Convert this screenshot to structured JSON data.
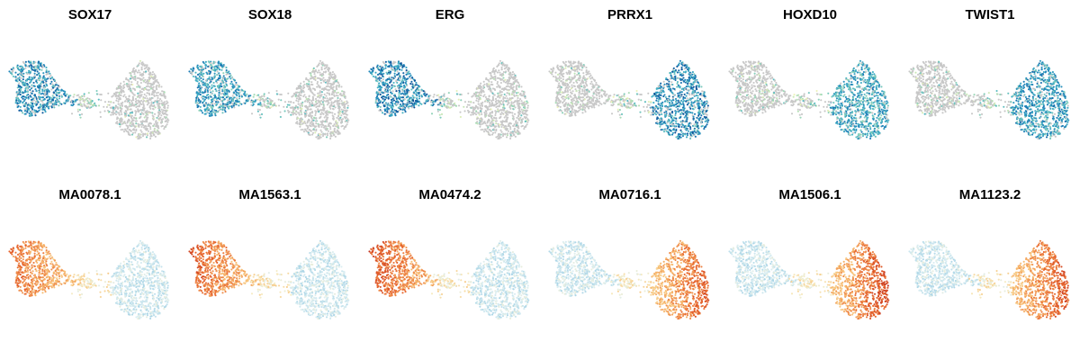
{
  "chart_data": [
    {
      "type": "scatter",
      "title": "SOX17",
      "feature": "gene expression",
      "enriched_region": "left",
      "palette": "gene",
      "intensity": 0.95
    },
    {
      "type": "scatter",
      "title": "SOX18",
      "feature": "gene expression",
      "enriched_region": "left",
      "palette": "gene",
      "intensity": 0.85
    },
    {
      "type": "scatter",
      "title": "ERG",
      "feature": "gene expression",
      "enriched_region": "left",
      "palette": "gene",
      "intensity": 1.0
    },
    {
      "type": "scatter",
      "title": "PRRX1",
      "feature": "gene expression",
      "enriched_region": "right",
      "palette": "gene",
      "intensity": 1.0
    },
    {
      "type": "scatter",
      "title": "HOXD10",
      "feature": "gene expression",
      "enriched_region": "right",
      "palette": "gene",
      "intensity": 0.8
    },
    {
      "type": "scatter",
      "title": "TWIST1",
      "feature": "gene expression",
      "enriched_region": "right",
      "palette": "gene",
      "intensity": 0.85
    },
    {
      "type": "scatter",
      "title": "MA0078.1",
      "feature": "motif activity",
      "enriched_region": "left",
      "palette": "motif",
      "intensity": 0.65
    },
    {
      "type": "scatter",
      "title": "MA1563.1",
      "feature": "motif activity",
      "enriched_region": "left",
      "palette": "motif",
      "intensity": 0.8
    },
    {
      "type": "scatter",
      "title": "MA0474.2",
      "feature": "motif activity",
      "enriched_region": "left",
      "palette": "motif",
      "intensity": 0.9
    },
    {
      "type": "scatter",
      "title": "MA0716.1",
      "feature": "motif activity",
      "enriched_region": "right",
      "palette": "motif",
      "intensity": 0.8
    },
    {
      "type": "scatter",
      "title": "MA1506.1",
      "feature": "motif activity",
      "enriched_region": "right",
      "palette": "motif",
      "intensity": 0.95
    },
    {
      "type": "scatter",
      "title": "MA1123.2",
      "feature": "motif activity",
      "enriched_region": "right",
      "palette": "motif",
      "intensity": 0.85
    }
  ],
  "palettes": {
    "gene": {
      "background": "#c8c8c8",
      "stops": [
        "#eef3b8",
        "#a5dbb6",
        "#42b1c5",
        "#1d80b8",
        "#0b4d95"
      ]
    },
    "motif": {
      "stops": [
        "#a9d4e6",
        "#dbeef2",
        "#f6ecc4",
        "#f8bf74",
        "#e7642c",
        "#b5221c"
      ]
    }
  }
}
